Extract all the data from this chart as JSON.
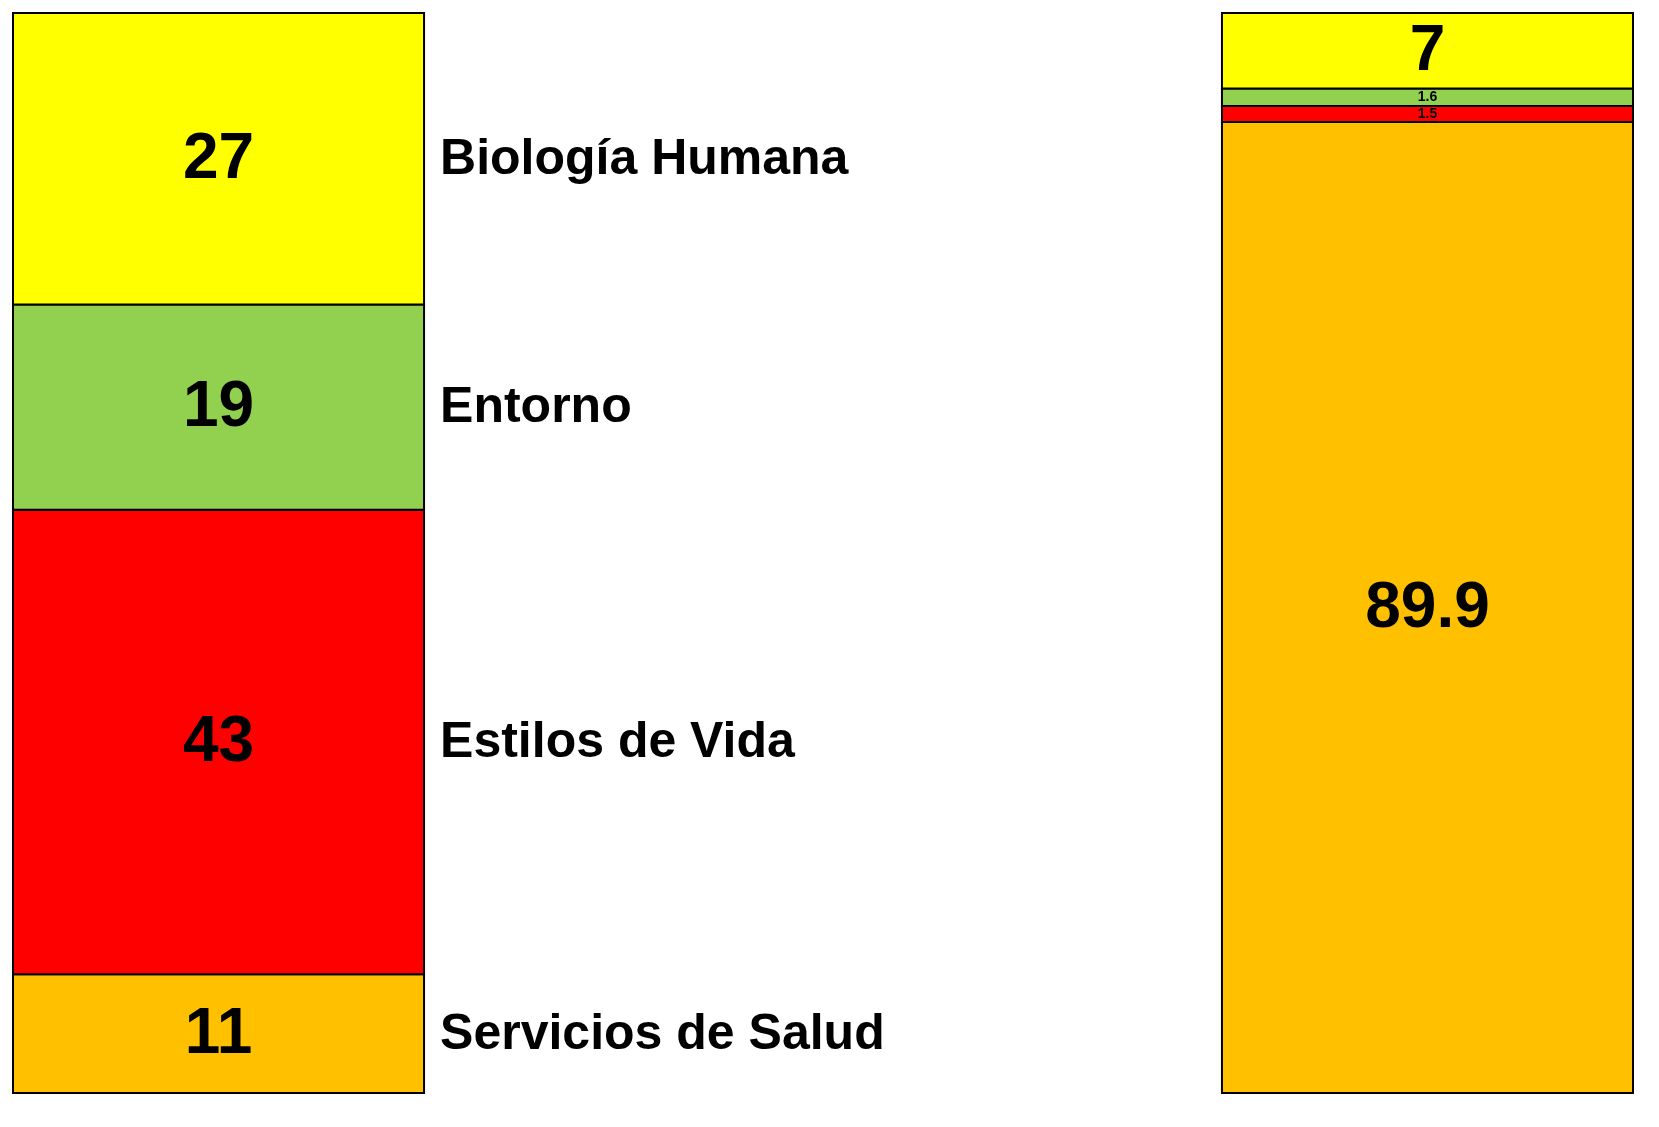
{
  "chart_data": {
    "type": "bar",
    "stacked": true,
    "data_labels": true,
    "legend": false,
    "categories": [
      null,
      null
    ],
    "series": [
      {
        "name": "Servicios de Salud",
        "color": "#ffc000",
        "values": [
          11,
          89.9
        ]
      },
      {
        "name": "Estilos de Vida",
        "color": "#ff0000",
        "values": [
          43,
          1.5
        ]
      },
      {
        "name": "Entorno",
        "color": "#92d050",
        "values": [
          19,
          1.6
        ]
      },
      {
        "name": "Biología Humana",
        "color": "#ffff00",
        "values": [
          27,
          7
        ]
      }
    ]
  }
}
